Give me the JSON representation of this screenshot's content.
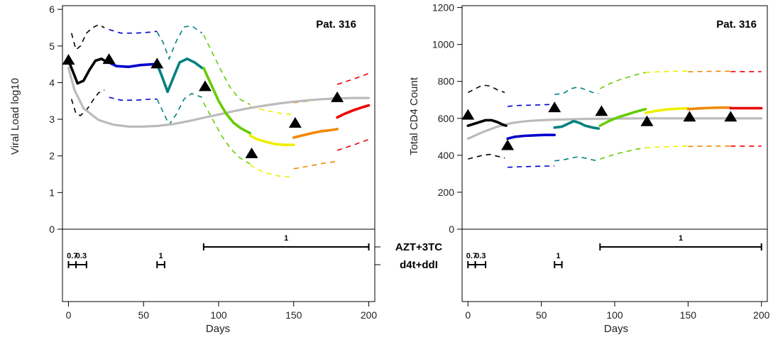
{
  "chart_data": [
    {
      "type": "line",
      "title": "Pat. 316",
      "xlabel": "Days",
      "ylabel": "Viral Load log10",
      "xlim": [
        -4,
        204
      ],
      "ylim": [
        0,
        6.1
      ],
      "xticks": [
        0,
        50,
        100,
        150,
        200
      ],
      "yticks": [
        0,
        1,
        2,
        3,
        4,
        5,
        6
      ],
      "grid": false,
      "observations": [
        {
          "x": 0,
          "y": 4.6
        },
        {
          "x": 27,
          "y": 4.62
        },
        {
          "x": 59,
          "y": 4.5
        },
        {
          "x": 91,
          "y": 3.88
        },
        {
          "x": 122,
          "y": 2.05
        },
        {
          "x": 151,
          "y": 2.88
        },
        {
          "x": 179,
          "y": 3.58
        }
      ],
      "series": [
        {
          "color": "#bbbbbb",
          "role": "population-mean",
          "x": [
            0,
            4,
            10,
            20,
            30,
            40,
            50,
            60,
            70,
            80,
            90,
            100,
            110,
            120,
            130,
            140,
            150,
            160,
            170,
            180,
            190,
            200
          ],
          "y": [
            4.4,
            3.8,
            3.3,
            2.98,
            2.85,
            2.8,
            2.8,
            2.82,
            2.87,
            2.95,
            3.04,
            3.13,
            3.22,
            3.3,
            3.37,
            3.43,
            3.48,
            3.52,
            3.55,
            3.57,
            3.58,
            3.58
          ]
        },
        {
          "color": "#000000",
          "x": [
            0,
            3,
            6,
            10,
            14,
            18,
            22,
            26
          ],
          "y": [
            4.6,
            4.3,
            3.98,
            4.05,
            4.35,
            4.6,
            4.65,
            4.55
          ]
        },
        {
          "color": "#0000cc",
          "x": [
            27,
            32,
            40,
            48,
            56,
            59
          ],
          "y": [
            4.55,
            4.45,
            4.43,
            4.48,
            4.5,
            4.5
          ]
        },
        {
          "color": "#008080",
          "x": [
            59,
            62,
            66,
            70,
            74,
            79,
            84,
            89
          ],
          "y": [
            4.5,
            4.2,
            3.75,
            4.15,
            4.55,
            4.65,
            4.55,
            4.4
          ]
        },
        {
          "color": "#66cc00",
          "x": [
            90,
            95,
            100,
            105,
            110,
            115,
            121
          ],
          "y": [
            4.4,
            3.95,
            3.5,
            3.15,
            2.9,
            2.75,
            2.62
          ]
        },
        {
          "color": "#eeee00",
          "x": [
            121,
            126,
            132,
            138,
            144,
            150
          ],
          "y": [
            2.55,
            2.45,
            2.38,
            2.32,
            2.3,
            2.3
          ]
        },
        {
          "color": "#f08800",
          "x": [
            150,
            156,
            162,
            168,
            174,
            179
          ],
          "y": [
            2.5,
            2.56,
            2.62,
            2.67,
            2.7,
            2.73
          ]
        },
        {
          "color": "#ee0000",
          "x": [
            179,
            184,
            190,
            196,
            200
          ],
          "y": [
            3.05,
            3.15,
            3.25,
            3.33,
            3.38
          ]
        }
      ],
      "bands": [
        {
          "color": "#000000",
          "upper": {
            "x": [
              2,
              5,
              8,
              12,
              16,
              20,
              24
            ],
            "y": [
              5.35,
              4.9,
              5.0,
              5.35,
              5.5,
              5.58,
              5.5
            ]
          },
          "lower": {
            "x": [
              2,
              5,
              8,
              12,
              16,
              20,
              24
            ],
            "y": [
              3.55,
              3.15,
              3.1,
              3.25,
              3.5,
              3.72,
              3.8
            ]
          }
        },
        {
          "color": "#0000cc",
          "upper": {
            "x": [
              27,
              35,
              45,
              55,
              59
            ],
            "y": [
              5.45,
              5.35,
              5.35,
              5.38,
              5.4
            ]
          },
          "lower": {
            "x": [
              27,
              35,
              45,
              55,
              59
            ],
            "y": [
              3.6,
              3.52,
              3.52,
              3.55,
              3.55
            ]
          }
        },
        {
          "color": "#008080",
          "upper": {
            "x": [
              59,
              63,
              67,
              72,
              77,
              82,
              89
            ],
            "y": [
              5.38,
              5.1,
              4.65,
              5.15,
              5.52,
              5.55,
              5.35
            ]
          },
          "lower": {
            "x": [
              59,
              63,
              67,
              72,
              77,
              82,
              89
            ],
            "y": [
              3.55,
              3.2,
              2.85,
              3.15,
              3.55,
              3.7,
              3.6
            ]
          }
        },
        {
          "color": "#66cc00",
          "upper": {
            "x": [
              90,
              96,
              102,
              108,
              114,
              121
            ],
            "y": [
              5.3,
              4.8,
              4.3,
              3.85,
              3.55,
              3.4
            ]
          },
          "lower": {
            "x": [
              90,
              96,
              102,
              108,
              114,
              121
            ],
            "y": [
              3.45,
              3.0,
              2.55,
              2.2,
              1.95,
              1.78
            ]
          }
        },
        {
          "color": "#eeee00",
          "upper": {
            "x": [
              121,
              130,
              140,
              150
            ],
            "y": [
              3.35,
              3.25,
              3.17,
              3.12
            ]
          },
          "lower": {
            "x": [
              121,
              130,
              140,
              150
            ],
            "y": [
              1.75,
              1.55,
              1.45,
              1.42
            ]
          }
        },
        {
          "color": "#f08800",
          "upper": {
            "x": [
              150,
              160,
              170,
              179
            ],
            "y": [
              3.45,
              3.5,
              3.55,
              3.6
            ]
          },
          "lower": {
            "x": [
              150,
              160,
              170,
              179
            ],
            "y": [
              1.65,
              1.72,
              1.8,
              1.85
            ]
          }
        },
        {
          "color": "#ee0000",
          "upper": {
            "x": [
              179,
              190,
              200
            ],
            "y": [
              3.95,
              4.1,
              4.25
            ]
          },
          "lower": {
            "x": [
              179,
              190,
              200
            ],
            "y": [
              2.15,
              2.3,
              2.45
            ]
          }
        }
      ]
    },
    {
      "type": "line",
      "title": "Pat. 316",
      "xlabel": "Days",
      "ylabel": "Total CD4 Count",
      "xlim": [
        -4,
        204
      ],
      "ylim": [
        0,
        1210
      ],
      "xticks": [
        0,
        50,
        100,
        150,
        200
      ],
      "yticks": [
        0,
        200,
        400,
        600,
        800,
        1000,
        1200
      ],
      "grid": false,
      "observations": [
        {
          "x": 0,
          "y": 615
        },
        {
          "x": 27,
          "y": 450
        },
        {
          "x": 59,
          "y": 655
        },
        {
          "x": 91,
          "y": 635
        },
        {
          "x": 122,
          "y": 580
        },
        {
          "x": 151,
          "y": 605
        },
        {
          "x": 179,
          "y": 605
        }
      ],
      "series": [
        {
          "color": "#bbbbbb",
          "role": "population-mean",
          "x": [
            0,
            10,
            20,
            30,
            40,
            50,
            60,
            70,
            80,
            90,
            100,
            120,
            140,
            160,
            180,
            200
          ],
          "y": [
            490,
            525,
            555,
            575,
            585,
            590,
            593,
            595,
            597,
            598,
            599,
            600,
            600,
            600,
            600,
            600
          ]
        },
        {
          "color": "#000000",
          "x": [
            0,
            4,
            8,
            12,
            16,
            20,
            24,
            26
          ],
          "y": [
            560,
            570,
            580,
            590,
            590,
            580,
            565,
            560
          ]
        },
        {
          "color": "#0000cc",
          "x": [
            27,
            32,
            38,
            45,
            52,
            59
          ],
          "y": [
            490,
            500,
            505,
            508,
            510,
            510
          ]
        },
        {
          "color": "#008080",
          "x": [
            59,
            64,
            68,
            72,
            76,
            80,
            85,
            89
          ],
          "y": [
            550,
            555,
            570,
            585,
            575,
            560,
            550,
            545
          ]
        },
        {
          "color": "#66cc00",
          "x": [
            90,
            96,
            102,
            108,
            114,
            121
          ],
          "y": [
            560,
            585,
            605,
            620,
            635,
            650
          ]
        },
        {
          "color": "#eeee00",
          "x": [
            121,
            128,
            135,
            142,
            150
          ],
          "y": [
            630,
            640,
            648,
            652,
            655
          ]
        },
        {
          "color": "#f08800",
          "x": [
            150,
            158,
            166,
            174,
            179
          ],
          "y": [
            650,
            654,
            657,
            658,
            658
          ]
        },
        {
          "color": "#ee0000",
          "x": [
            179,
            188,
            196,
            200
          ],
          "y": [
            655,
            655,
            655,
            655
          ]
        }
      ],
      "bands": [
        {
          "color": "#000000",
          "upper": {
            "x": [
              0,
              5,
              10,
              15,
              20,
              25
            ],
            "y": [
              740,
              760,
              780,
              775,
              755,
              740
            ]
          },
          "lower": {
            "x": [
              0,
              5,
              10,
              15,
              20,
              25
            ],
            "y": [
              380,
              390,
              400,
              405,
              395,
              385
            ]
          }
        },
        {
          "color": "#0000cc",
          "upper": {
            "x": [
              27,
              35,
              45,
              55,
              59
            ],
            "y": [
              665,
              670,
              672,
              675,
              675
            ]
          },
          "lower": {
            "x": [
              27,
              35,
              45,
              55,
              59
            ],
            "y": [
              335,
              338,
              340,
              342,
              342
            ]
          }
        },
        {
          "color": "#008080",
          "upper": {
            "x": [
              59,
              65,
              70,
              75,
              80,
              85,
              89
            ],
            "y": [
              730,
              735,
              760,
              770,
              755,
              740,
              735
            ]
          },
          "lower": {
            "x": [
              59,
              65,
              70,
              75,
              80,
              85,
              89
            ],
            "y": [
              370,
              375,
              385,
              392,
              385,
              375,
              370
            ]
          }
        },
        {
          "color": "#66cc00",
          "upper": {
            "x": [
              90,
              96,
              102,
              108,
              114,
              121
            ],
            "y": [
              760,
              785,
              805,
              820,
              835,
              848
            ]
          },
          "lower": {
            "x": [
              90,
              96,
              102,
              108,
              114,
              121
            ],
            "y": [
              380,
              395,
              410,
              420,
              432,
              440
            ]
          }
        },
        {
          "color": "#eeee00",
          "upper": {
            "x": [
              121,
              130,
              140,
              150
            ],
            "y": [
              848,
              852,
              855,
              856
            ]
          },
          "lower": {
            "x": [
              121,
              130,
              140,
              150
            ],
            "y": [
              440,
              445,
              448,
              450
            ]
          }
        },
        {
          "color": "#f08800",
          "upper": {
            "x": [
              150,
              160,
              170,
              179
            ],
            "y": [
              852,
              854,
              855,
              855
            ]
          },
          "lower": {
            "x": [
              150,
              160,
              170,
              179
            ],
            "y": [
              448,
              449,
              450,
              450
            ]
          }
        },
        {
          "color": "#ee0000",
          "upper": {
            "x": [
              179,
              190,
              200
            ],
            "y": [
              853,
              853,
              853
            ]
          },
          "lower": {
            "x": [
              179,
              190,
              200
            ],
            "y": [
              450,
              450,
              450
            ]
          }
        }
      ]
    }
  ],
  "treatments": {
    "drugs": [
      "AZT+3TC",
      "d4t+ddI"
    ],
    "regimens": [
      {
        "drug": "d4t+ddI",
        "start": 0,
        "end": 5,
        "dose": "0.7"
      },
      {
        "drug": "d4t+ddI",
        "start": 5,
        "end": 12,
        "dose": "0.3"
      },
      {
        "drug": "d4t+ddI",
        "start": 59,
        "end": 64,
        "dose": "1"
      },
      {
        "drug": "AZT+3TC",
        "start": 90,
        "end": 200,
        "dose": "1"
      }
    ]
  }
}
